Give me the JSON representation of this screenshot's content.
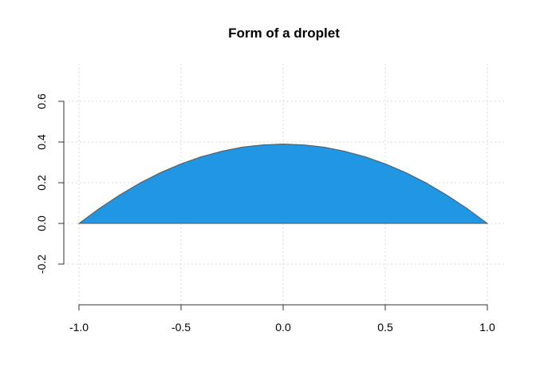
{
  "chart_data": {
    "type": "area",
    "title": "Form of a droplet",
    "xlabel": "",
    "ylabel": "",
    "xlim": [
      -1.0,
      1.0
    ],
    "ylim": [
      -0.2,
      0.6
    ],
    "x_ticks": [
      -1.0,
      -0.5,
      0.0,
      0.5,
      1.0
    ],
    "x_tick_labels": [
      "-1.0",
      "-0.5",
      "0.0",
      "0.5",
      "1.0"
    ],
    "y_ticks": [
      -0.2,
      0.0,
      0.2,
      0.4,
      0.6
    ],
    "y_tick_labels": [
      "-0.2",
      "0.0",
      "0.2",
      "0.4",
      "0.6"
    ],
    "grid": true,
    "fill_color": "#2196e3",
    "series": [
      {
        "x": [
          -1.0,
          -0.9,
          -0.8,
          -0.7,
          -0.6,
          -0.5,
          -0.4,
          -0.3,
          -0.2,
          -0.1,
          0.0,
          0.1,
          0.2,
          0.3,
          0.4,
          0.5,
          0.6,
          0.7,
          0.8,
          0.9,
          1.0
        ],
        "y": [
          0.0,
          0.074,
          0.14,
          0.199,
          0.25,
          0.293,
          0.328,
          0.355,
          0.375,
          0.386,
          0.39,
          0.386,
          0.375,
          0.355,
          0.328,
          0.293,
          0.25,
          0.199,
          0.14,
          0.074,
          0.0
        ]
      }
    ]
  }
}
